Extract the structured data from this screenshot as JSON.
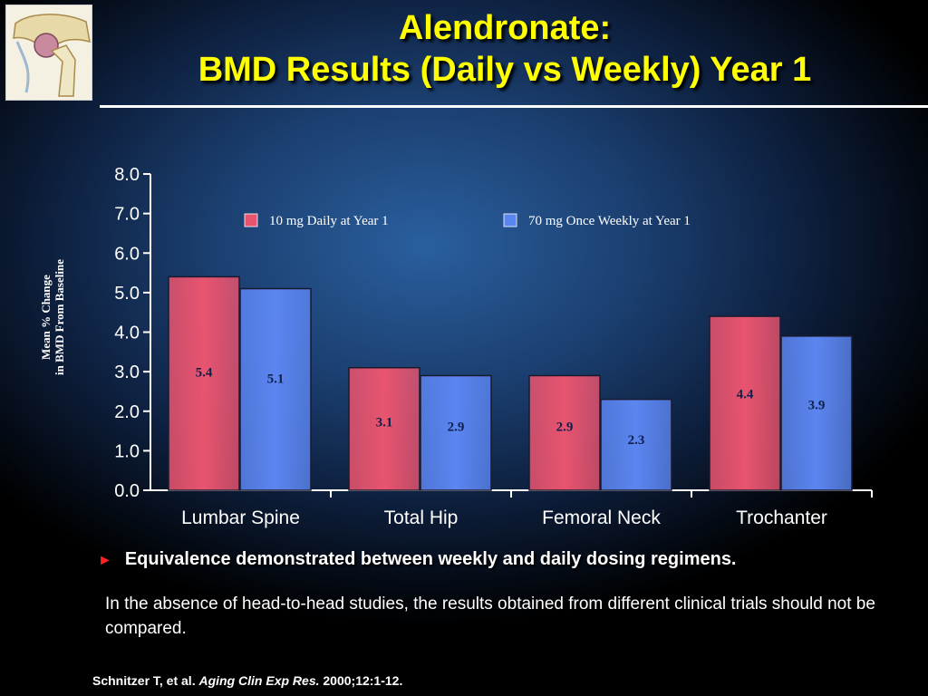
{
  "slide": {
    "title_line1": "Alendronate:",
    "title_line2": "BMD Results (Daily vs Weekly) Year 1",
    "title_color": "#ffff00",
    "logo_icon": "hip-bone-illustration-icon"
  },
  "chart_data": {
    "type": "bar",
    "categories": [
      "Lumbar Spine",
      "Total Hip",
      "Femoral Neck",
      "Trochanter"
    ],
    "series": [
      {
        "name": "10 mg Daily at Year 1",
        "values": [
          5.4,
          3.1,
          2.9,
          4.4
        ],
        "color": "#e8546f"
      },
      {
        "name": "70 mg Once Weekly at Year 1",
        "values": [
          5.1,
          2.9,
          2.3,
          3.9
        ],
        "color": "#5b85f0"
      }
    ],
    "ylabel_lines": [
      "Mean % Change",
      "in BMD From Baseline"
    ],
    "ylim": [
      0,
      8
    ],
    "yticks": [
      "0.0",
      "1.0",
      "2.0",
      "3.0",
      "4.0",
      "5.0",
      "6.0",
      "7.0",
      "8.0"
    ],
    "grid": false,
    "legend_position": "top"
  },
  "bullet": {
    "marker": "►",
    "text": "Equivalence demonstrated between weekly and daily dosing regimens."
  },
  "note": "In the absence of head-to-head studies, the results obtained from different clinical trials should not be compared.",
  "citation": {
    "authors": "Schnitzer T, et al.",
    "journal": "Aging Clin Exp Res.",
    "ref": "2000;12:1-12."
  }
}
